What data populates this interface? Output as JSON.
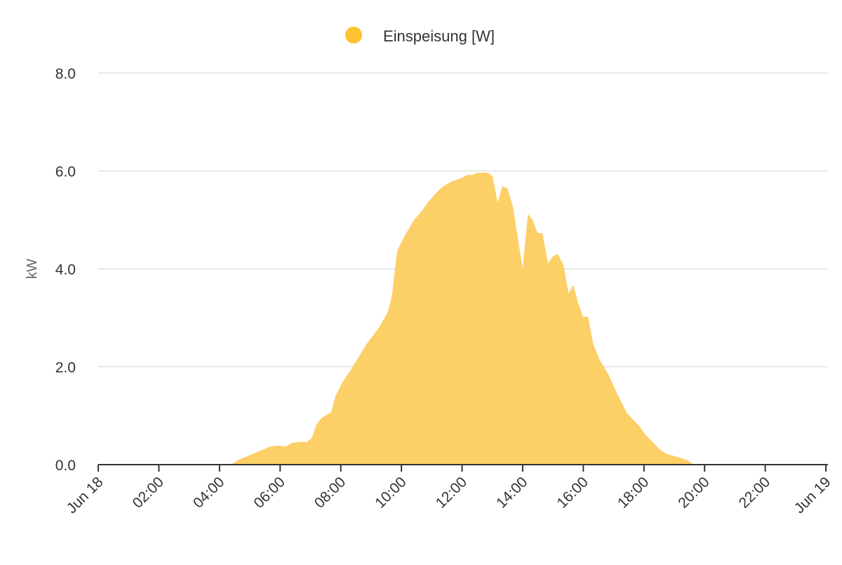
{
  "chart_data": {
    "type": "area",
    "title": "",
    "xlabel": "",
    "ylabel": "kW",
    "ylim": [
      0,
      8
    ],
    "xlim_hours": [
      0,
      24
    ],
    "grid": true,
    "legend_position": "top-center",
    "series": [
      {
        "name": "Einspeisung [W]",
        "color": "#ffc233",
        "fill_color": "#fdcf67",
        "x_hours": [
          4.38,
          4.63,
          4.91,
          5.67,
          5.9,
          6.2,
          6.37,
          6.67,
          6.88,
          7.04,
          7.2,
          7.36,
          7.69,
          7.82,
          8.03,
          8.33,
          8.87,
          9.26,
          9.54,
          9.68,
          9.86,
          10.12,
          10.42,
          10.67,
          10.88,
          11.11,
          11.37,
          11.64,
          12.01,
          12.18,
          12.34,
          12.5,
          12.73,
          12.89,
          13.01,
          13.17,
          13.33,
          13.5,
          13.68,
          14.0,
          14.17,
          14.33,
          14.49,
          14.65,
          14.84,
          15.0,
          15.16,
          15.35,
          15.51,
          15.67,
          15.83,
          15.99,
          16.16,
          16.32,
          16.53,
          16.83,
          17.13,
          17.43,
          17.87,
          18.06,
          18.29,
          18.54,
          18.75,
          19.03,
          19.44,
          19.63
        ],
        "values": [
          0,
          0.1,
          0.17,
          0.37,
          0.39,
          0.37,
          0.44,
          0.47,
          0.46,
          0.54,
          0.82,
          0.95,
          1.08,
          1.39,
          1.66,
          1.94,
          2.48,
          2.8,
          3.1,
          3.43,
          4.37,
          4.69,
          5.0,
          5.18,
          5.36,
          5.53,
          5.68,
          5.78,
          5.86,
          5.92,
          5.92,
          5.96,
          5.97,
          5.95,
          5.89,
          5.35,
          5.69,
          5.64,
          5.26,
          4.0,
          5.12,
          5.0,
          4.73,
          4.73,
          4.11,
          4.26,
          4.3,
          4.07,
          3.5,
          3.67,
          3.3,
          3.02,
          3.02,
          2.48,
          2.15,
          1.84,
          1.43,
          1.06,
          0.77,
          0.6,
          0.46,
          0.3,
          0.22,
          0.17,
          0.09,
          0
        ]
      }
    ],
    "y_ticks": [
      "0.0",
      "2.0",
      "4.0",
      "6.0",
      "8.0"
    ],
    "x_ticks": [
      "Jun 18",
      "02:00",
      "04:00",
      "06:00",
      "08:00",
      "10:00",
      "12:00",
      "14:00",
      "16:00",
      "18:00",
      "20:00",
      "22:00",
      "Jun 19"
    ]
  }
}
